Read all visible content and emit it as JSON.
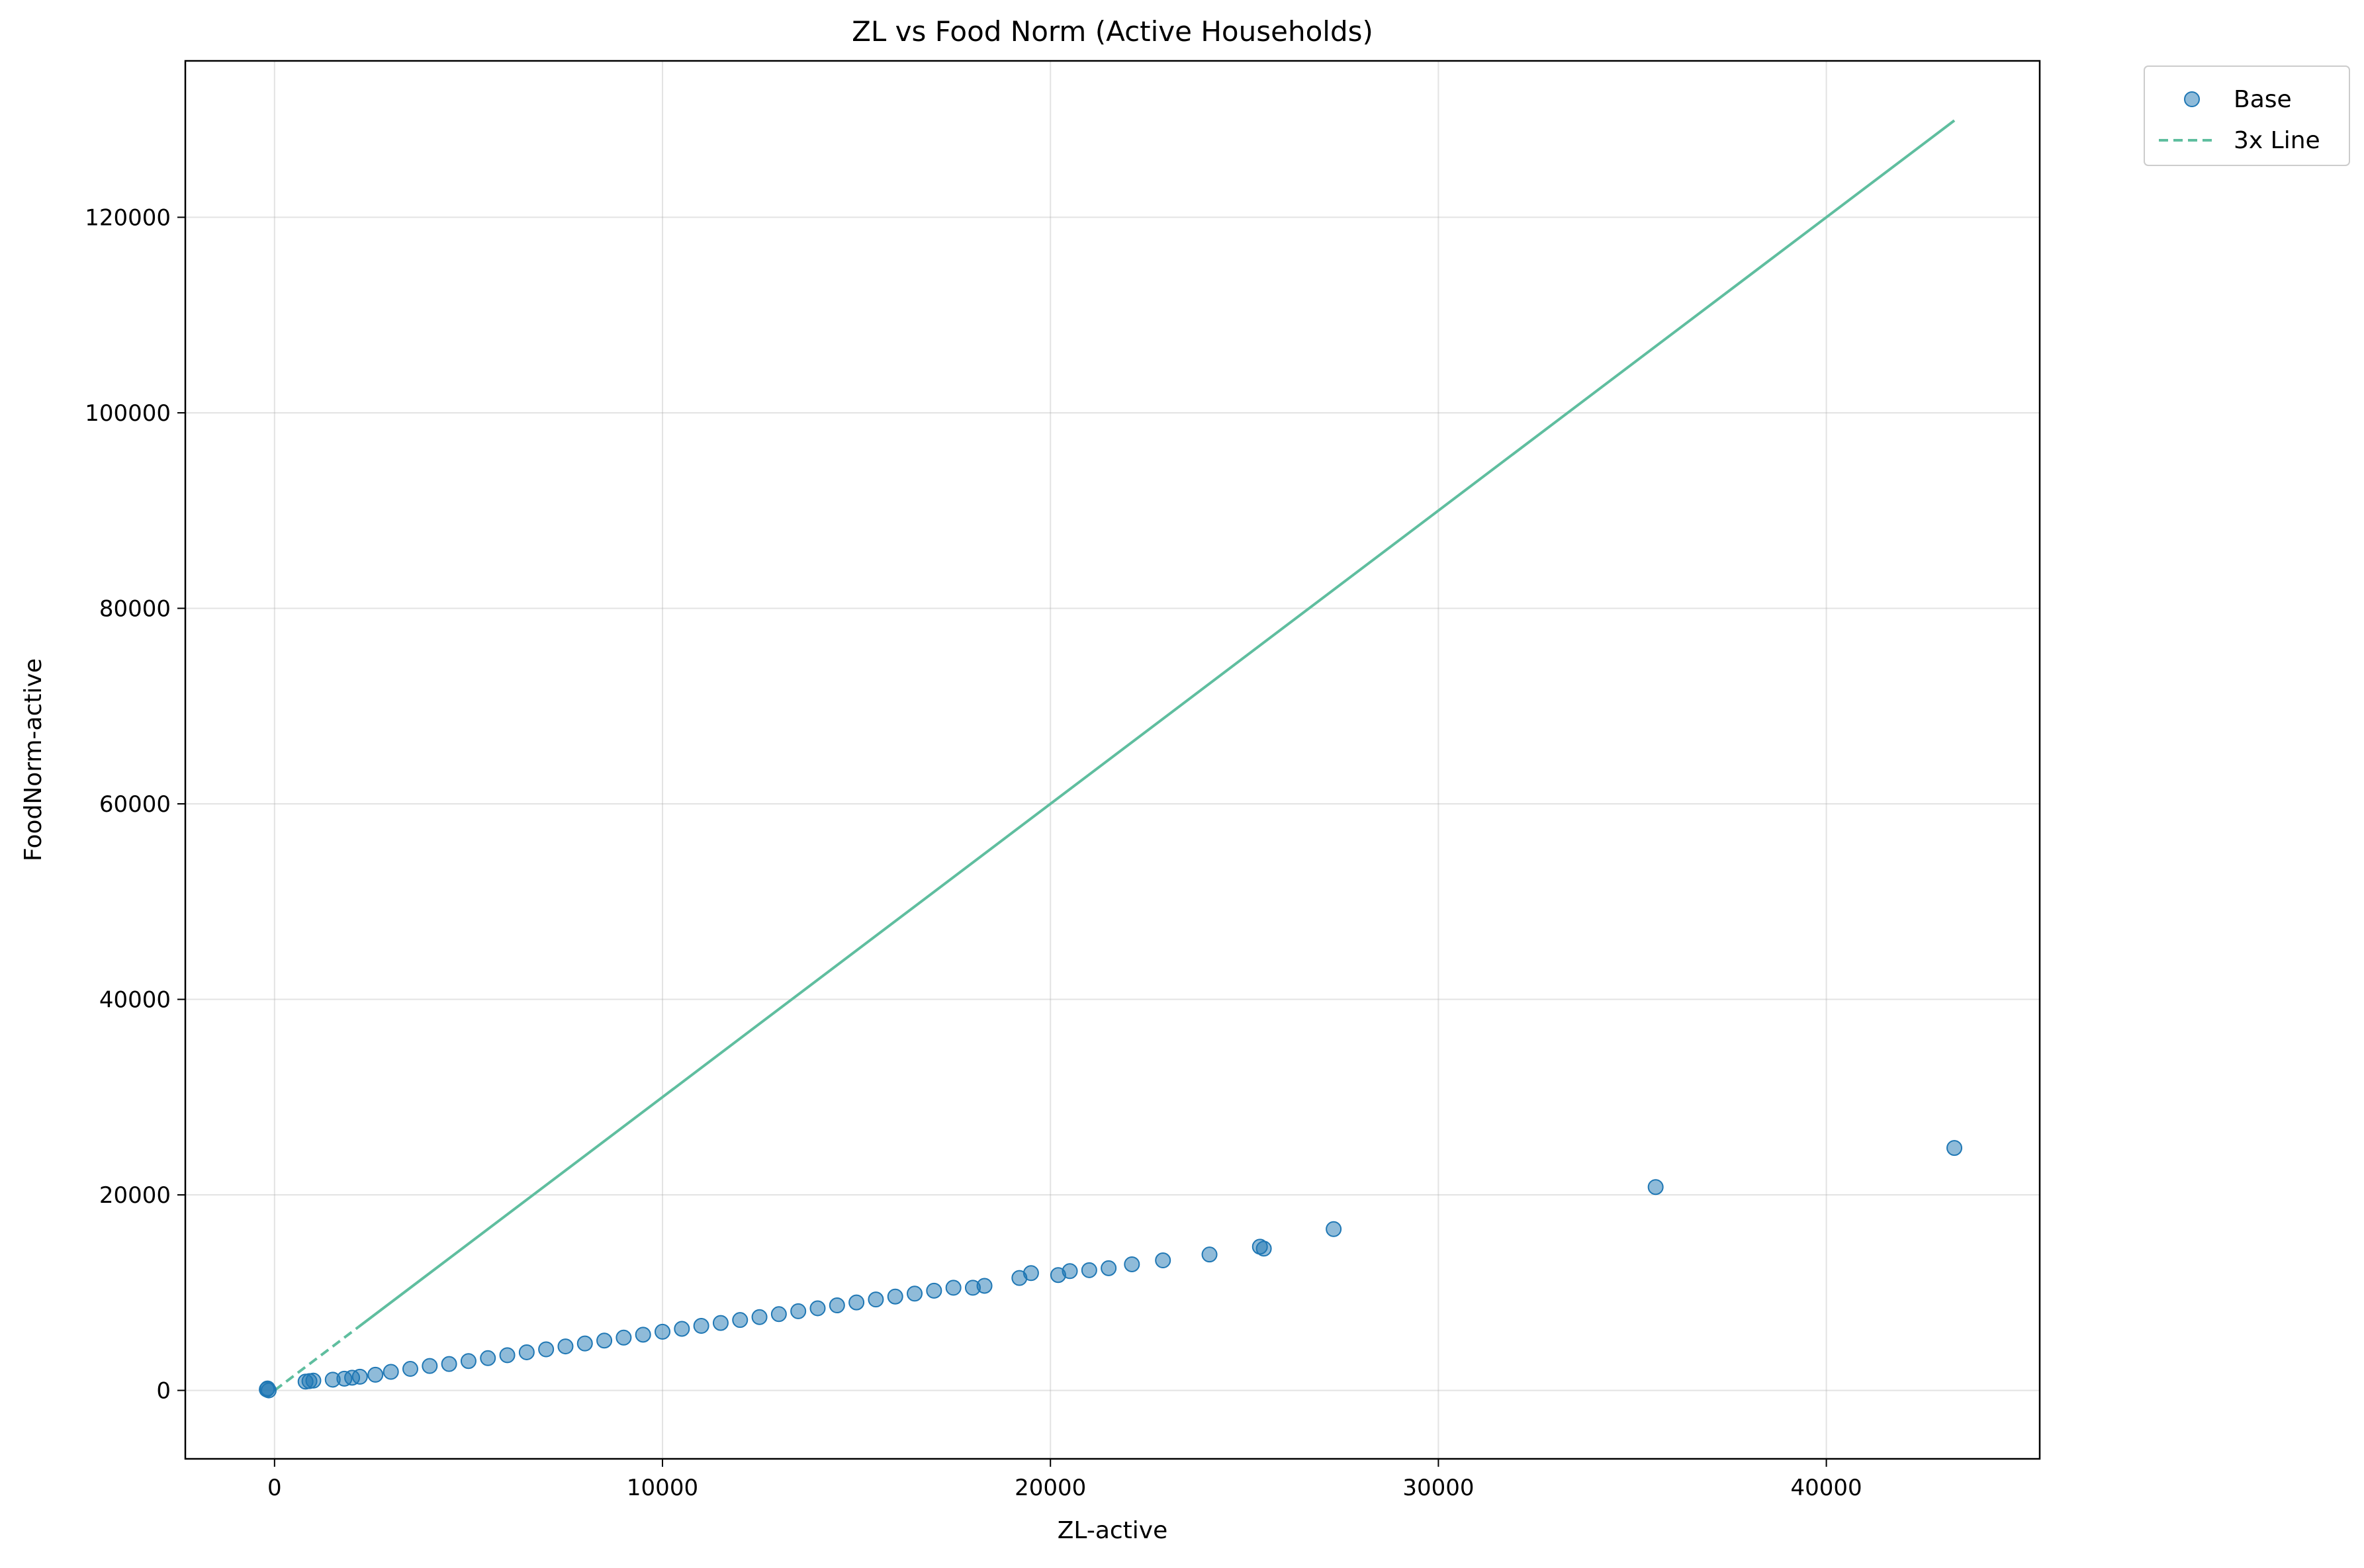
{
  "chart_data": {
    "type": "scatter",
    "title": "ZL vs Food Norm (Active Households)",
    "xlabel": "ZL-active",
    "ylabel": "FoodNorm-active",
    "xlim": [
      -2300,
      45500
    ],
    "ylim": [
      -7000,
      136000
    ],
    "xticks": [
      0,
      10000,
      20000,
      30000,
      40000
    ],
    "yticks": [
      0,
      20000,
      40000,
      60000,
      80000,
      100000,
      120000
    ],
    "grid": true,
    "legend_position": "outside-top-right",
    "legend": [
      {
        "label": "Base",
        "kind": "marker"
      },
      {
        "label": "3x Line",
        "kind": "dashed-line"
      }
    ],
    "series": [
      {
        "name": "Base",
        "kind": "scatter",
        "color": "#1f77b4",
        "alpha": 0.5,
        "points": [
          [
            -200,
            100
          ],
          [
            -150,
            0
          ],
          [
            -180,
            200
          ],
          [
            800,
            900
          ],
          [
            900,
            950
          ],
          [
            1000,
            1000
          ],
          [
            1500,
            1100
          ],
          [
            1800,
            1200
          ],
          [
            2000,
            1300
          ],
          [
            2200,
            1400
          ],
          [
            2600,
            1600
          ],
          [
            3000,
            1900
          ],
          [
            3500,
            2200
          ],
          [
            4000,
            2500
          ],
          [
            4500,
            2700
          ],
          [
            5000,
            3000
          ],
          [
            5500,
            3300
          ],
          [
            6000,
            3600
          ],
          [
            6500,
            3900
          ],
          [
            7000,
            4200
          ],
          [
            7500,
            4500
          ],
          [
            8000,
            4800
          ],
          [
            8500,
            5100
          ],
          [
            9000,
            5400
          ],
          [
            9500,
            5700
          ],
          [
            10000,
            6000
          ],
          [
            10500,
            6300
          ],
          [
            11000,
            6600
          ],
          [
            11500,
            6900
          ],
          [
            12000,
            7200
          ],
          [
            12500,
            7500
          ],
          [
            13000,
            7800
          ],
          [
            13500,
            8100
          ],
          [
            14000,
            8400
          ],
          [
            14500,
            8700
          ],
          [
            15000,
            9000
          ],
          [
            15500,
            9300
          ],
          [
            16000,
            9600
          ],
          [
            16500,
            9900
          ],
          [
            17000,
            10200
          ],
          [
            17500,
            10500
          ],
          [
            18000,
            10500
          ],
          [
            18300,
            10700
          ],
          [
            19200,
            11500
          ],
          [
            19500,
            12000
          ],
          [
            20200,
            11800
          ],
          [
            20500,
            12200
          ],
          [
            21000,
            12300
          ],
          [
            21500,
            12500
          ],
          [
            22100,
            12900
          ],
          [
            22900,
            13300
          ],
          [
            24100,
            13900
          ],
          [
            25400,
            14700
          ],
          [
            25500,
            14500
          ],
          [
            27300,
            16500
          ],
          [
            35600,
            20800
          ],
          [
            43300,
            24800
          ]
        ]
      },
      {
        "name": "3x Line",
        "kind": "line",
        "color": "#5fbe9f",
        "x": [
          0,
          43300
        ],
        "y": [
          0,
          129900
        ]
      }
    ]
  }
}
